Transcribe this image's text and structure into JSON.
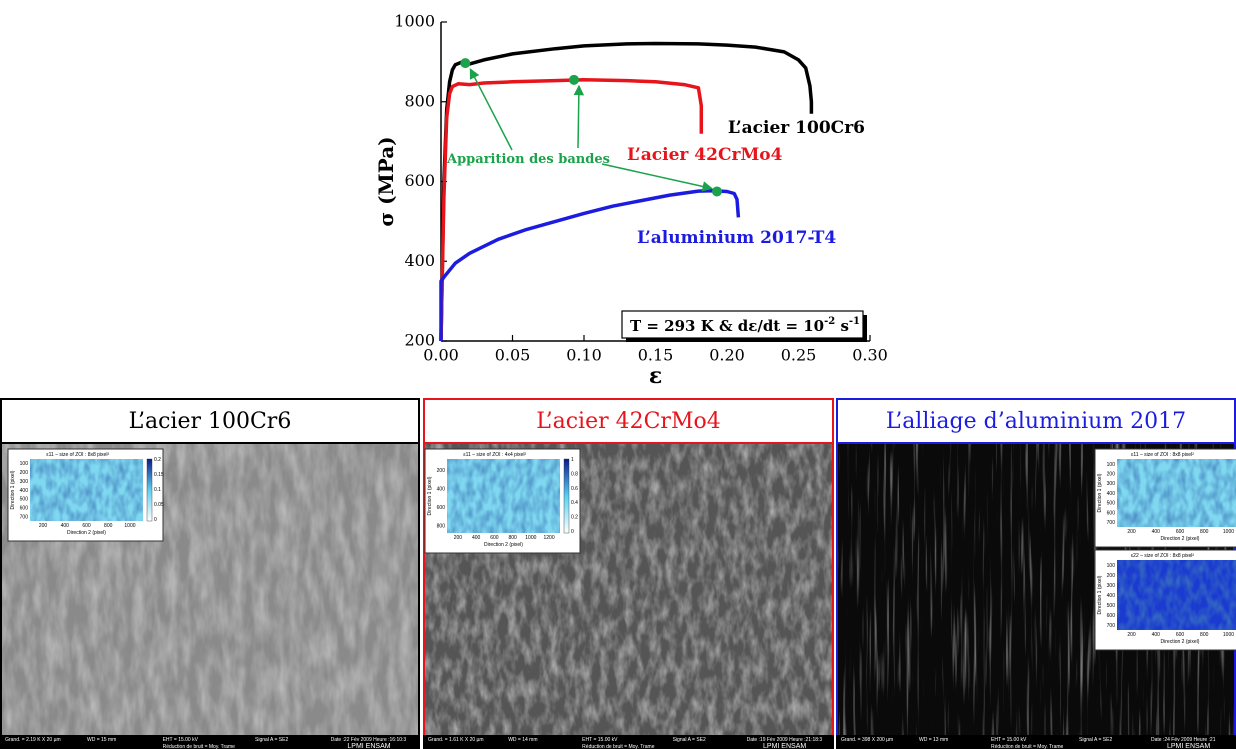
{
  "chart_data": {
    "type": "line",
    "xlabel": "ε",
    "ylabel": "σ (MPa)",
    "xlim": [
      0,
      0.3
    ],
    "ylim": [
      200,
      1000
    ],
    "xticks": [
      {
        "value": 0,
        "label": "0.00"
      },
      {
        "value": 0.05,
        "label": "0.05"
      },
      {
        "value": 0.1,
        "label": "0.10"
      },
      {
        "value": 0.15,
        "label": "0.15"
      },
      {
        "value": 0.2,
        "label": "0.20"
      },
      {
        "value": 0.25,
        "label": "0.25"
      },
      {
        "value": 0.3,
        "label": "0.30"
      }
    ],
    "yticks": [
      200,
      400,
      600,
      800,
      1000
    ],
    "series": [
      {
        "name": "L’acier 100Cr6",
        "color": "#000000",
        "x": [
          0,
          0.002,
          0.004,
          0.006,
          0.008,
          0.01,
          0.015,
          0.02,
          0.03,
          0.05,
          0.08,
          0.1,
          0.13,
          0.15,
          0.18,
          0.2,
          0.22,
          0.24,
          0.25,
          0.255,
          0.258,
          0.259,
          0.259
        ],
        "values": [
          200,
          600,
          780,
          850,
          880,
          893,
          900,
          895,
          905,
          920,
          933,
          940,
          945,
          946,
          945,
          942,
          937,
          925,
          905,
          885,
          840,
          800,
          770
        ]
      },
      {
        "name": "L’acier 42CrMo4",
        "color": "#e8141b",
        "x": [
          0,
          0.002,
          0.004,
          0.006,
          0.008,
          0.012,
          0.02,
          0.03,
          0.05,
          0.08,
          0.1,
          0.13,
          0.15,
          0.17,
          0.18,
          0.182,
          0.182
        ],
        "values": [
          200,
          560,
          760,
          820,
          838,
          845,
          843,
          847,
          850,
          853,
          855,
          853,
          850,
          843,
          835,
          790,
          720
        ]
      },
      {
        "name": "L’aluminium 2017-T4",
        "color": "#1c1ce0",
        "x": [
          0,
          0,
          0.002,
          0.01,
          0.02,
          0.04,
          0.06,
          0.08,
          0.1,
          0.12,
          0.14,
          0.16,
          0.18,
          0.19,
          0.2,
          0.205,
          0.207,
          0.208
        ],
        "values": [
          200,
          350,
          360,
          395,
          420,
          455,
          480,
          500,
          520,
          538,
          552,
          566,
          576,
          577,
          575,
          570,
          555,
          510
        ]
      }
    ],
    "markers": {
      "name": "Apparition des bandes",
      "color": "#1aa34a",
      "x": [
        0.017,
        0.093,
        0.193
      ],
      "values": [
        897,
        855,
        575
      ]
    },
    "condition": [
      "T = 293 K & dε/dt = 10",
      "-2",
      " s",
      "-1"
    ]
  },
  "panels": [
    {
      "title": "L’acier 100Cr6",
      "color": "#000000",
      "insets": [
        {
          "title": "ε11 – size of ZOI : 8x8 pixel²",
          "xlabel": "Direction 2 (pixel)",
          "ylabel": "Direction 1 (pixel)",
          "xticks": [
            "200",
            "400",
            "600",
            "800",
            "1000"
          ],
          "yticks": [
            "100",
            "200",
            "300",
            "400",
            "500",
            "600",
            "700"
          ],
          "cbar": [
            "0.2",
            "0.15",
            "0.1",
            "0.05",
            "0"
          ]
        }
      ],
      "footer": [
        "Grand. = 2.19 K X  20 µm",
        "WD = 15 mm",
        "EHT = 15.00 kV",
        "Signal A = SE2",
        "Date :22 Fév 2009 Heure :16:10:3",
        "Réduction de bruit = Moy. Trame",
        "LPMI ENSAM"
      ]
    },
    {
      "title": "L’acier 42CrMo4",
      "color": "#e8141b",
      "insets": [
        {
          "title": "ε11 – size of ZOI : 4x4 pixel²",
          "xlabel": "Direction 2 (pixel)",
          "ylabel": "Direction 1 (pixel)",
          "xticks": [
            "200",
            "400",
            "600",
            "800",
            "1000",
            "1200"
          ],
          "yticks": [
            "200",
            "400",
            "600",
            "800"
          ],
          "cbar": [
            "1",
            "0.8",
            "0.6",
            "0.4",
            "0.2",
            "0"
          ]
        }
      ],
      "footer": [
        "Grand. = 1.61 K X  20 µm",
        "WD = 14 mm",
        "EHT = 15.00 kV",
        "Signal A = SE2",
        "Date :19 Fév 2009 Heure :21:18:3",
        "Réduction de bruit = Moy. Trame",
        "LPMI ENSAM"
      ]
    },
    {
      "title": "L’alliage d’aluminium 2017",
      "color": "#1c1ce0",
      "insets": [
        {
          "title": "ε11 – size of ZOI : 8x8 pixel²",
          "xlabel": "Direction 2 (pixel)",
          "ylabel": "Direction 1 (pixel)",
          "xticks": [
            "200",
            "400",
            "600",
            "800",
            "1000"
          ],
          "yticks": [
            "100",
            "200",
            "300",
            "400",
            "500",
            "600",
            "700"
          ]
        },
        {
          "title": "ε22 – size of ZOI : 8x8 pixel²",
          "xlabel": "Direction 2 (pixel)",
          "ylabel": "Direction 1 (pixel)",
          "xticks": [
            "200",
            "400",
            "600",
            "800",
            "1000"
          ],
          "yticks": [
            "100",
            "200",
            "300",
            "400",
            "500",
            "600",
            "700"
          ]
        }
      ],
      "footer": [
        "Grand. = 398 X  200 µm",
        "WD = 13 mm",
        "EHT = 15.00 kV",
        "Signal A = SE2",
        "Date :24 Fév 2009 Heure :21",
        "Réduction de bruit = Moy. Trame",
        "LPMI ENSAM"
      ]
    }
  ]
}
